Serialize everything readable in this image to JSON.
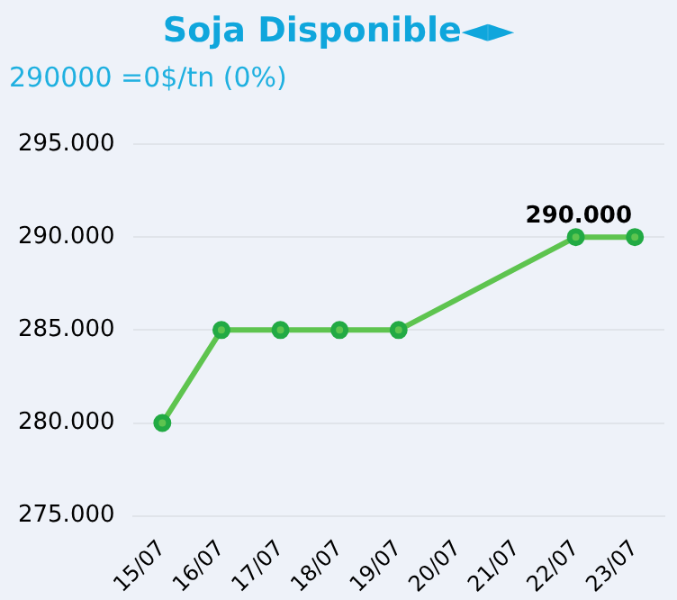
{
  "chart_data": {
    "type": "line",
    "title": "Soja Disponible◄►",
    "subtitle": "290000 =0$/tn (0%)",
    "categories": [
      "15/07",
      "16/07",
      "17/07",
      "18/07",
      "19/07",
      "20/07",
      "21/07",
      "22/07",
      "23/07"
    ],
    "series": [
      {
        "color": "#5ec44f",
        "values": [
          280000,
          285000,
          285000,
          285000,
          285000,
          null,
          null,
          290000,
          290000
        ],
        "value_labels": [
          null,
          null,
          null,
          null,
          null,
          null,
          null,
          "290.000",
          null
        ]
      }
    ],
    "ylim": [
      275000,
      295000
    ],
    "yticks": [
      {
        "value": 275000,
        "label": "275.000"
      },
      {
        "value": 280000,
        "label": "280.000"
      },
      {
        "value": 285000,
        "label": "285.000"
      },
      {
        "value": 290000,
        "label": "290.000"
      },
      {
        "value": 295000,
        "label": "295.000"
      }
    ],
    "grid": "y",
    "legend": false,
    "marker": "circle",
    "line_style": "solid"
  }
}
